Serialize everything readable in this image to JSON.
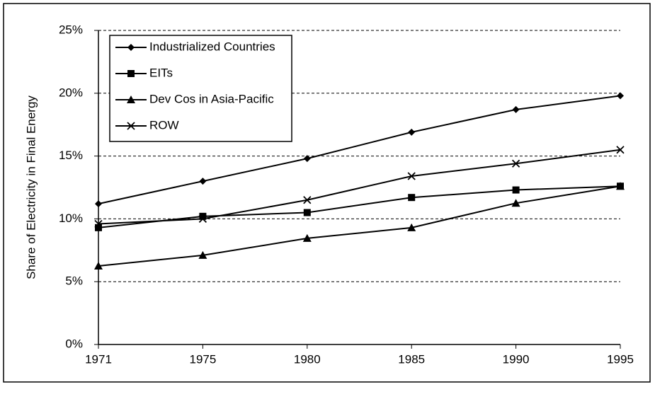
{
  "chart_data": {
    "type": "line",
    "y_label": "Share of Electricity in Final Energy",
    "categories": [
      "1971",
      "1975",
      "1980",
      "1985",
      "1990",
      "1995"
    ],
    "series": [
      {
        "name": "Industrialized Countries",
        "color": "#000000",
        "marker": "diamond",
        "values": [
          11.2,
          13.0,
          14.8,
          16.9,
          18.7,
          19.8
        ]
      },
      {
        "name": "EITs",
        "color": "#000000",
        "marker": "square",
        "values": [
          9.3,
          10.2,
          10.5,
          11.7,
          12.3,
          12.6
        ]
      },
      {
        "name": "Dev Cos in Asia-Pacific",
        "color": "#000000",
        "marker": "triangle",
        "values": [
          6.25,
          7.1,
          8.45,
          9.3,
          11.25,
          12.6
        ]
      },
      {
        "name": "ROW",
        "color": "#000000",
        "marker": "x",
        "values": [
          9.6,
          10.0,
          11.5,
          13.4,
          14.4,
          15.5
        ]
      }
    ],
    "ylim": [
      0,
      25
    ],
    "yticks": [
      {
        "value": 0,
        "label": "0%"
      },
      {
        "value": 5,
        "label": "5%"
      },
      {
        "value": 10,
        "label": "10%"
      },
      {
        "value": 15,
        "label": "15%"
      },
      {
        "value": 20,
        "label": "20%"
      },
      {
        "value": 25,
        "label": "25%"
      }
    ],
    "grid": true,
    "legend": "top-left"
  }
}
